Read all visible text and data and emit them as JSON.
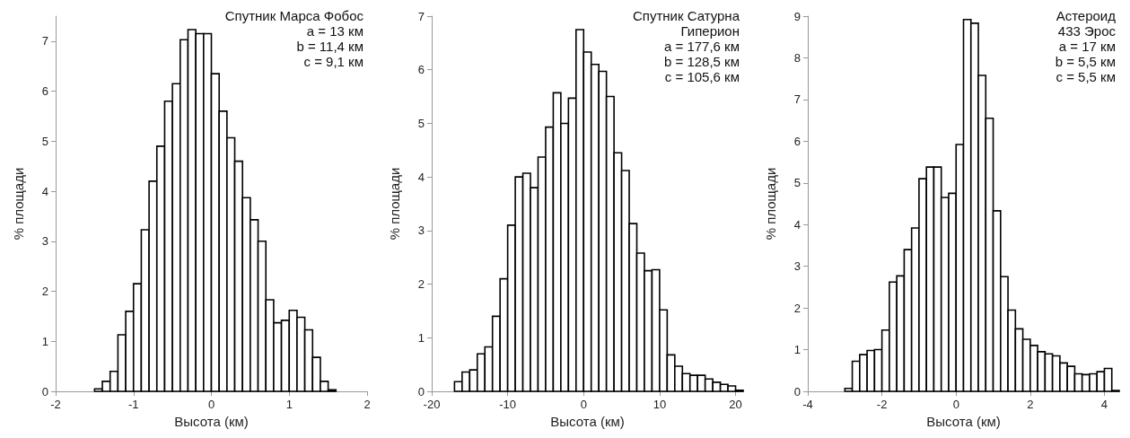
{
  "chart_data": [
    {
      "type": "histogram",
      "xlabel": "Высота (км)",
      "ylabel": "% площади",
      "annotations": [
        "Спутник Марса Фобос",
        "a = 13 км",
        "b = 11,4 км",
        "c = 9,1 км"
      ],
      "color": "#000000",
      "bins": [
        -1.5,
        -1.4,
        -1.3,
        -1.2,
        -1.1,
        -1.0,
        -0.9,
        -0.8,
        -0.7,
        -0.6,
        -0.5,
        -0.4,
        -0.3,
        -0.2,
        -0.1,
        0,
        0.1,
        0.2,
        0.3,
        0.4,
        0.5,
        0.6,
        0.7,
        0.8,
        0.9,
        1.0,
        1.1,
        1.2,
        1.3,
        1.4,
        1.5,
        1.6
      ],
      "values": [
        0.05,
        0.2,
        0.4,
        1.13,
        1.6,
        2.15,
        3.23,
        4.2,
        4.9,
        5.8,
        6.15,
        7.03,
        7.23,
        7.15,
        7.15,
        6.35,
        5.6,
        5.07,
        4.6,
        3.87,
        3.43,
        3.0,
        1.83,
        1.37,
        1.42,
        1.62,
        1.48,
        1.23,
        0.68,
        0.2,
        0.03
      ],
      "xlim": [
        -2,
        2
      ],
      "xticks": [
        -2,
        -1,
        0,
        1,
        2
      ],
      "ylim": [
        0,
        7.5
      ],
      "yticks": [
        0,
        1,
        2,
        3,
        4,
        5,
        6,
        7
      ],
      "grid": false
    },
    {
      "type": "histogram",
      "xlabel": "Высота (км)",
      "ylabel": "% площади",
      "annotations": [
        "Спутник Сатурна",
        "Гиперион",
        "a = 177,6 км",
        "b = 128,5 км",
        "c = 105,6 км"
      ],
      "color": "#000000",
      "bins": [
        -17,
        -16,
        -15,
        -14,
        -13,
        -12,
        -11,
        -10,
        -9,
        -8,
        -7,
        -6,
        -5,
        -4,
        -3,
        -2,
        -1,
        0,
        1,
        2,
        3,
        4,
        5,
        6,
        7,
        8,
        9,
        10,
        11,
        12,
        13,
        14,
        15,
        16,
        17,
        18,
        19,
        20,
        21
      ],
      "values": [
        0.18,
        0.36,
        0.4,
        0.7,
        0.83,
        1.4,
        2.1,
        3.1,
        4.0,
        4.07,
        3.8,
        4.37,
        4.93,
        5.57,
        5.0,
        5.47,
        6.75,
        6.33,
        6.1,
        5.97,
        5.5,
        4.45,
        4.12,
        3.13,
        2.58,
        2.25,
        2.27,
        1.52,
        0.68,
        0.47,
        0.33,
        0.3,
        0.3,
        0.23,
        0.17,
        0.13,
        0.1,
        0.02
      ],
      "xlim": [
        -20,
        21
      ],
      "xticks": [
        -20,
        -10,
        0,
        10,
        20
      ],
      "ylim": [
        0,
        7
      ],
      "yticks": [
        0,
        1,
        2,
        3,
        4,
        5,
        6,
        7
      ],
      "grid": false
    },
    {
      "type": "histogram",
      "xlabel": "Высота (км)",
      "ylabel": "% площади",
      "annotations": [
        "Астероид",
        "433 Эрос",
        "a = 17 км",
        "b = 5,5 км",
        "c = 5,5 км"
      ],
      "color": "#000000",
      "bins": [
        -3.0,
        -2.8,
        -2.6,
        -2.4,
        -2.2,
        -2.0,
        -1.8,
        -1.6,
        -1.4,
        -1.2,
        -1.0,
        -0.8,
        -0.6,
        -0.4,
        -0.2,
        0,
        0.2,
        0.4,
        0.6,
        0.8,
        1.0,
        1.2,
        1.4,
        1.6,
        1.8,
        2.0,
        2.2,
        2.4,
        2.6,
        2.8,
        3.0,
        3.2,
        3.4,
        3.6,
        3.8,
        4.0,
        4.2,
        4.4
      ],
      "values": [
        0.07,
        0.72,
        0.88,
        0.98,
        1.0,
        1.47,
        2.62,
        2.77,
        3.4,
        3.92,
        5.1,
        5.38,
        5.38,
        4.65,
        4.75,
        5.92,
        8.92,
        8.83,
        7.58,
        6.55,
        4.33,
        2.75,
        1.95,
        1.5,
        1.25,
        1.1,
        0.95,
        0.9,
        0.85,
        0.68,
        0.6,
        0.42,
        0.4,
        0.42,
        0.47,
        0.55,
        0.02
      ],
      "xlim": [
        -4,
        4.4
      ],
      "xticks": [
        -4,
        -2,
        0,
        2,
        4
      ],
      "ylim": [
        0,
        9
      ],
      "yticks": [
        0,
        1,
        2,
        3,
        4,
        5,
        6,
        7,
        8,
        9
      ],
      "grid": false
    }
  ]
}
